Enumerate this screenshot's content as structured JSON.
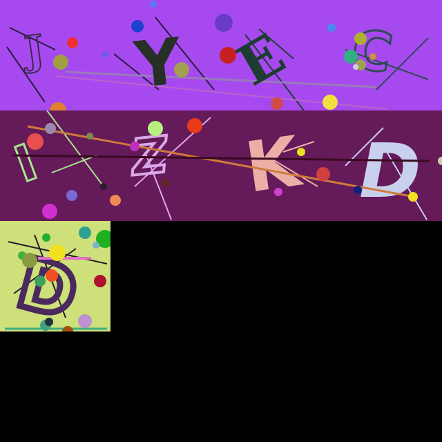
{
  "panels": [
    {
      "name": "panel-1",
      "background": "#a64af0",
      "letters": [
        {
          "char": "J",
          "color": "#3a2a4a"
        },
        {
          "char": "Y",
          "color": "#263026"
        },
        {
          "char": "E",
          "color": "#1e3d32"
        },
        {
          "char": "C",
          "color": "#2f4a52"
        }
      ]
    },
    {
      "name": "panel-2",
      "background": "#651a5a",
      "letters": [
        {
          "char": "I",
          "color": "#a8e690"
        },
        {
          "char": "Z",
          "color": "#d9a8e8"
        },
        {
          "char": "K",
          "color": "#eab0a8"
        },
        {
          "char": "D",
          "color": "#c8d0ee"
        }
      ]
    },
    {
      "name": "panel-3",
      "background": "#cde07a",
      "letters": [
        {
          "char": "D",
          "color": "#4a2a5e"
        }
      ]
    }
  ]
}
